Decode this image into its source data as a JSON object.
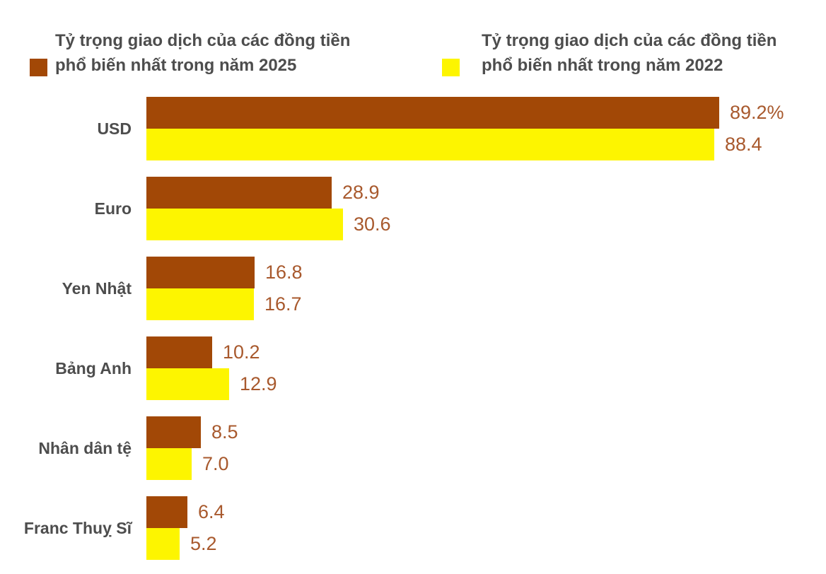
{
  "legend": [
    {
      "series": "2025",
      "label_line1": "Tỷ trọng giao dịch của các đồng tiền",
      "label_line2": "phổ biến nhất trong năm 2025",
      "color": "#a24806"
    },
    {
      "series": "2022",
      "label_line1": "Tỷ trọng giao dịch của các đồng tiền",
      "label_line2": "phổ biến nhất trong năm 2022",
      "color": "#fdf500"
    }
  ],
  "chart_data": {
    "type": "bar",
    "orientation": "horizontal",
    "title": "",
    "xlabel": "",
    "ylabel": "",
    "xlim": [
      0,
      100
    ],
    "grid": false,
    "legend_position": "top",
    "categories": [
      "USD",
      "Euro",
      "Yen Nhật",
      "Bảng Anh",
      "Nhân dân tệ",
      "Franc Thuỵ Sĩ"
    ],
    "series": [
      {
        "name": "Tỷ trọng giao dịch của các đồng tiền phổ biến nhất trong năm 2025",
        "color": "#a24806",
        "values": [
          89.2,
          28.9,
          16.8,
          10.2,
          8.5,
          6.4
        ],
        "labels": [
          "89.2%",
          "28.9",
          "16.8",
          "10.2",
          "8.5",
          "6.4"
        ]
      },
      {
        "name": "Tỷ trọng giao dịch của các đồng tiền phổ biến nhất trong năm 2022",
        "color": "#fdf500",
        "values": [
          88.4,
          30.6,
          16.7,
          12.9,
          7.0,
          5.2
        ],
        "labels": [
          "88.4",
          "30.6",
          "16.7",
          "12.9",
          "7.0",
          "5.2"
        ]
      }
    ]
  },
  "colors": {
    "bar_2025": "#a24806",
    "bar_2022": "#fdf500",
    "value_label_text": "#a8592d",
    "category_label_text": "#4d4d4d",
    "legend_text": "#4d4d4d",
    "background": "#ffffff"
  }
}
